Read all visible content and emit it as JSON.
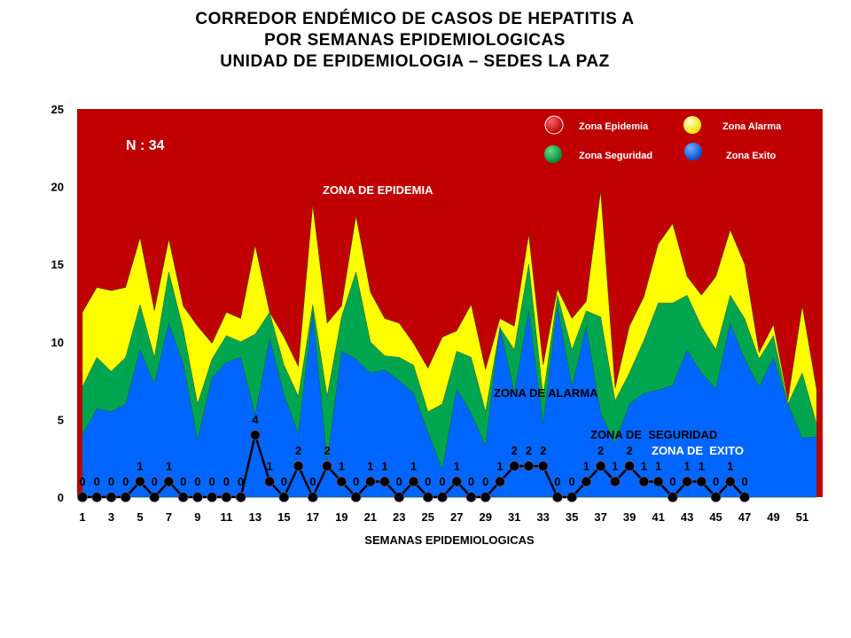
{
  "chart_data": {
    "type": "area",
    "title": [
      "CORREDOR ENDÉMICO DE CASOS DE HEPATITIS A",
      "POR SEMANAS EPIDEMIOLOGICAS",
      "UNIDAD DE EPIDEMIOLOGIA – SEDES LA PAZ"
    ],
    "xlabel": "SEMANAS EPIDEMIOLOGICAS",
    "ylabel": "",
    "ylim": [
      0,
      25
    ],
    "yticks": [
      "0",
      "5",
      "10",
      "15",
      "20",
      "25"
    ],
    "xticks": [
      "1",
      "3",
      "5",
      "7",
      "9",
      "11",
      "13",
      "15",
      "17",
      "19",
      "21",
      "23",
      "25",
      "27",
      "29",
      "31",
      "33",
      "35",
      "37",
      "39",
      "41",
      "43",
      "45",
      "47",
      "49",
      "51"
    ],
    "weeks": [
      1,
      2,
      3,
      4,
      5,
      6,
      7,
      8,
      9,
      10,
      11,
      12,
      13,
      14,
      15,
      16,
      17,
      18,
      19,
      20,
      21,
      22,
      23,
      24,
      25,
      26,
      27,
      28,
      29,
      30,
      31,
      32,
      33,
      34,
      35,
      36,
      37,
      38,
      39,
      40,
      41,
      42,
      43,
      44,
      45,
      46,
      47,
      48,
      49,
      50,
      51,
      52
    ],
    "series": [
      {
        "name": "Zona Alarma",
        "color": "#FFFF00",
        "values": [
          11.9,
          13.5,
          13.3,
          13.5,
          16.7,
          12,
          16.6,
          12.3,
          11,
          9.9,
          11.9,
          11.5,
          16.2,
          11.9,
          10.3,
          8.4,
          18.8,
          11.2,
          12.3,
          18.1,
          13.2,
          11.5,
          11.2,
          9.9,
          8.3,
          10.3,
          10.7,
          12.4,
          8.2,
          11.5,
          11,
          16.9,
          8.5,
          13.4,
          11.5,
          12.6,
          19.7,
          7,
          11,
          12.9,
          16.3,
          17.6,
          14.2,
          13,
          14.2,
          17.2,
          15,
          9.3,
          11.1,
          6.2,
          12.3,
          6.9
        ]
      },
      {
        "name": "Zona Seguridad",
        "color": "#00A64F",
        "values": [
          7.1,
          9,
          8.1,
          9,
          12.4,
          9,
          14.5,
          10.8,
          6,
          8.9,
          10.4,
          10,
          10.5,
          11.9,
          8.5,
          6.5,
          12.4,
          6.5,
          11.6,
          14.5,
          10,
          9.1,
          9,
          8.5,
          5.5,
          6,
          9.4,
          9,
          5.5,
          10.9,
          9.5,
          15,
          6.5,
          13,
          9.5,
          12,
          11.6,
          6.2,
          8,
          10.1,
          12.5,
          12.5,
          13,
          11,
          9.5,
          13,
          11.5,
          8.9,
          10.4,
          6,
          8,
          4.7
        ]
      },
      {
        "name": "Zona Exito",
        "color": "#0066FF",
        "values": [
          4,
          5.7,
          5.5,
          6,
          9.5,
          7.3,
          11.2,
          8.6,
          3.7,
          7.7,
          8.7,
          9,
          5.3,
          10.2,
          6.6,
          4.1,
          11.9,
          2.3,
          9.4,
          8.9,
          8,
          8.2,
          7.5,
          6.7,
          4.2,
          1.8,
          7,
          5.4,
          3.3,
          11,
          6.7,
          12,
          4.7,
          12.3,
          7.1,
          11,
          5.4,
          3.5,
          6,
          6.7,
          6.9,
          7.2,
          9.5,
          8,
          7,
          11.2,
          8.9,
          7.1,
          9,
          6,
          3.8,
          3.9
        ]
      },
      {
        "name": "Casos",
        "color": "#000000",
        "values": [
          0,
          0,
          0,
          0,
          1,
          0,
          1,
          0,
          0,
          0,
          0,
          0,
          4,
          1,
          0,
          2,
          0,
          2,
          1,
          0,
          1,
          1,
          0,
          1,
          0,
          0,
          1,
          0,
          0,
          1,
          2,
          2,
          2,
          0,
          0,
          1,
          2,
          1,
          2,
          1,
          1,
          0,
          1,
          1,
          0,
          1,
          0
        ]
      }
    ],
    "background_zone": {
      "name": "Zona Epidemia",
      "color": "#C00000"
    },
    "legend": {
      "placement": "top-right",
      "entries": [
        {
          "label": "Zona Epidemia",
          "color": "#C00000"
        },
        {
          "label": "Zona Alarma",
          "color": "#FFFF00"
        },
        {
          "label": "Zona Seguridad",
          "color": "#00A64F"
        },
        {
          "label": "Zona Exito",
          "color": "#0066FF"
        }
      ]
    },
    "annotations": {
      "n_total": "N : 34",
      "zona_epidemia": "ZONA DE EPIDEMIA",
      "zona_alarma": "ZONA DE ALARMA",
      "zona_seguridad": "ZONA DE  SEGURIDAD",
      "zona_exito": "ZONA DE  EXITO"
    }
  }
}
